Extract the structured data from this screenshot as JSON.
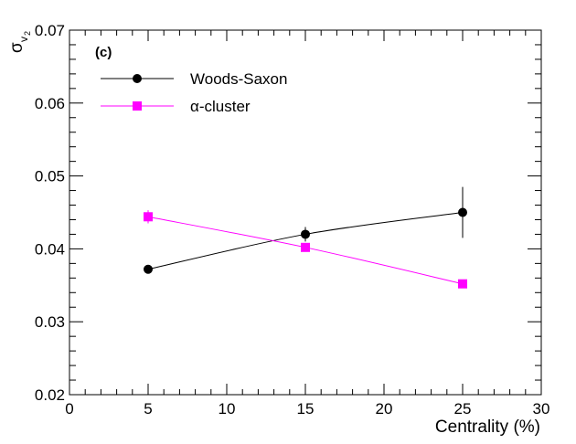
{
  "chart_data": {
    "type": "line",
    "panel_label": "(c)",
    "xlabel": "Centrality (%)",
    "ylabel": {
      "main": "σ",
      "sub": "v",
      "subsub": "2"
    },
    "xlim": [
      0,
      30
    ],
    "ylim": [
      0.02,
      0.07
    ],
    "x_ticks": [
      0,
      5,
      10,
      15,
      20,
      25,
      30
    ],
    "x_tick_labels": [
      "0",
      "5",
      "10",
      "15",
      "20",
      "25",
      "30"
    ],
    "y_ticks": [
      0.02,
      0.03,
      0.04,
      0.05,
      0.06,
      0.07
    ],
    "y_tick_labels": [
      "0.02",
      "0.03",
      "0.04",
      "0.05",
      "0.06",
      "0.07"
    ],
    "legend_position": "top-left",
    "grid": false,
    "series": [
      {
        "name": "Woods-Saxon",
        "color": "#000000",
        "marker": "circle",
        "x": [
          5,
          15,
          25
        ],
        "y": [
          0.0372,
          0.042,
          0.045
        ],
        "err": [
          0.0001,
          0.001,
          0.0035
        ]
      },
      {
        "name": "α-cluster",
        "color": "#ff00ff",
        "marker": "square",
        "x": [
          5,
          15,
          25
        ],
        "y": [
          0.0444,
          0.0402,
          0.0352
        ],
        "err": [
          0.0009,
          0.0004,
          0.0002
        ]
      }
    ]
  }
}
